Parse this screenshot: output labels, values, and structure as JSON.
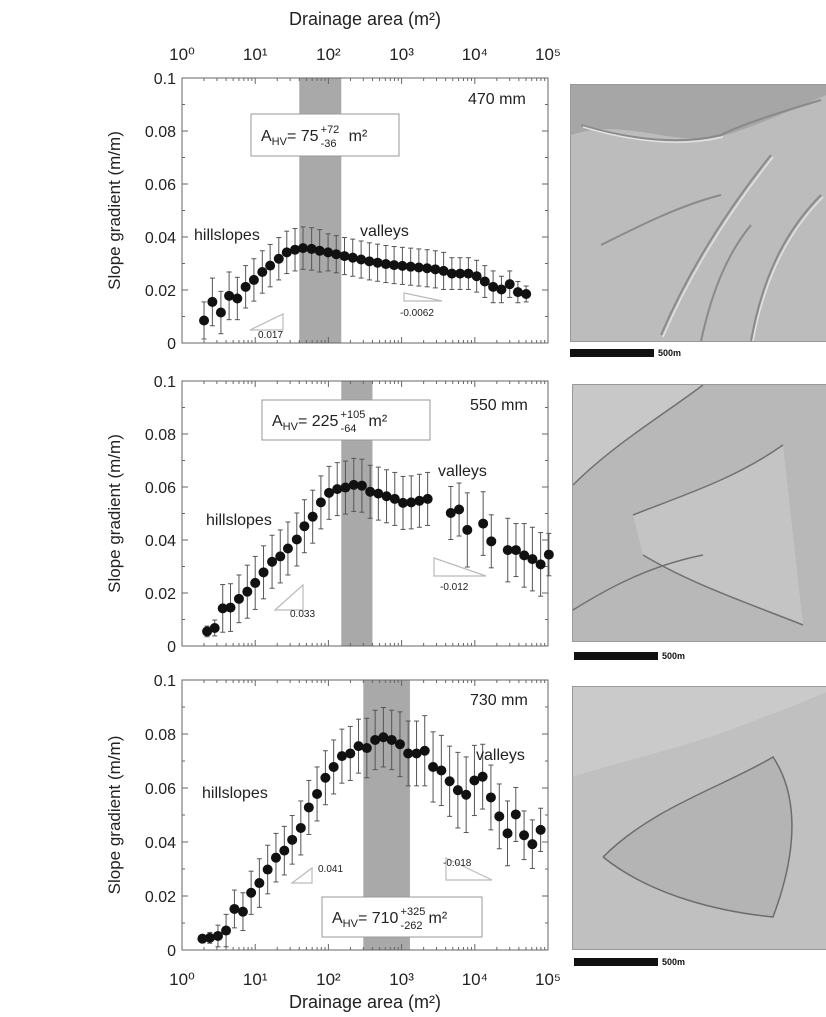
{
  "figure": {
    "top_axis_label": "Drainage area (m²)",
    "bottom_axis_label": "Drainage area (m²)",
    "y_axis_label": "Slope gradient (m/m)",
    "x_ticks": [
      {
        "value": 1,
        "label": "10⁰"
      },
      {
        "value": 10,
        "label": "10¹"
      },
      {
        "value": 100,
        "label": "10²"
      },
      {
        "value": 1000,
        "label": "10³"
      },
      {
        "value": 10000,
        "label": "10⁴"
      },
      {
        "value": 100000,
        "label": "10⁵"
      }
    ],
    "y_ticks": [
      "0",
      "0.02",
      "0.04",
      "0.06",
      "0.08",
      "0.1"
    ],
    "scale_bar_label": "500m"
  },
  "chart_data": [
    {
      "type": "scatter",
      "x_scale": "log",
      "xlim": [
        1,
        100000
      ],
      "ylim": [
        0,
        0.1
      ],
      "precip_label": "470 mm",
      "ahv": {
        "main": "A",
        "sub": "HV",
        "value": "= 75",
        "plus": "+72",
        "minus": "-36",
        "unit": "m²"
      },
      "band": [
        40,
        150
      ],
      "labels": {
        "hillslopes": "hillslopes",
        "valleys": "valleys"
      },
      "slopes": {
        "hill": "0.017",
        "valley": "-0.0062"
      },
      "x": [
        2,
        2.6,
        3.4,
        4.4,
        5.7,
        7.4,
        9.6,
        12.5,
        16,
        21,
        27,
        35,
        45,
        59,
        76,
        99,
        128,
        166,
        215,
        280,
        363,
        470,
        610,
        790,
        1025,
        1330,
        1720,
        2230,
        2890,
        3750,
        4860,
        6300,
        8170,
        10600,
        13700,
        17800,
        23100,
        30000,
        38800,
        50300
      ],
      "y": [
        0.0085,
        0.0155,
        0.0115,
        0.0178,
        0.0168,
        0.0212,
        0.0238,
        0.0268,
        0.0292,
        0.0318,
        0.0342,
        0.0352,
        0.0358,
        0.0355,
        0.0348,
        0.0342,
        0.0335,
        0.0328,
        0.0322,
        0.0315,
        0.0308,
        0.0303,
        0.0298,
        0.0294,
        0.0291,
        0.0288,
        0.0285,
        0.0282,
        0.0278,
        0.0272,
        0.0262,
        0.0262,
        0.0262,
        0.0252,
        0.0232,
        0.0212,
        0.0202,
        0.0222,
        0.0192,
        0.0185
      ],
      "err": [
        0.007,
        0.009,
        0.008,
        0.009,
        0.008,
        0.008,
        0.008,
        0.008,
        0.008,
        0.008,
        0.008,
        0.008,
        0.008,
        0.008,
        0.008,
        0.007,
        0.007,
        0.007,
        0.007,
        0.007,
        0.007,
        0.007,
        0.007,
        0.007,
        0.007,
        0.007,
        0.007,
        0.007,
        0.007,
        0.007,
        0.006,
        0.006,
        0.006,
        0.006,
        0.006,
        0.006,
        0.005,
        0.005,
        0.004,
        0.003
      ]
    },
    {
      "type": "scatter",
      "x_scale": "log",
      "xlim": [
        1,
        100000
      ],
      "ylim": [
        0,
        0.1
      ],
      "precip_label": "550 mm",
      "ahv": {
        "main": "A",
        "sub": "HV",
        "value": "= 225",
        "plus": "+105",
        "minus": "-64",
        "unit": "m²"
      },
      "band": [
        150,
        400
      ],
      "labels": {
        "hillslopes": "hillslopes",
        "valleys": "valleys"
      },
      "slopes": {
        "hill": "0.033",
        "valley": "-0.012"
      },
      "x": [
        2.2,
        2.8,
        3.6,
        4.6,
        6,
        7.8,
        10,
        13,
        17,
        22,
        28,
        37,
        47,
        61,
        79,
        102,
        132,
        171,
        222,
        287,
        372,
        481,
        623,
        807,
        1045,
        1353,
        1752,
        2270,
        4700,
        6100,
        7900,
        13000,
        16800,
        28200,
        36500,
        47300,
        61200,
        79300,
        102700
      ],
      "y": [
        0.0055,
        0.0068,
        0.0142,
        0.0145,
        0.0178,
        0.0205,
        0.0238,
        0.0278,
        0.0318,
        0.0338,
        0.0368,
        0.0402,
        0.0452,
        0.0488,
        0.0542,
        0.0578,
        0.0592,
        0.0598,
        0.0608,
        0.0605,
        0.0582,
        0.0575,
        0.0565,
        0.0555,
        0.054,
        0.0542,
        0.0548,
        0.0555,
        0.0502,
        0.0515,
        0.0438,
        0.0462,
        0.0395,
        0.0362,
        0.0362,
        0.0342,
        0.0328,
        0.0308,
        0.0345
      ],
      "err": [
        0.002,
        0.003,
        0.009,
        0.009,
        0.009,
        0.01,
        0.01,
        0.01,
        0.01,
        0.01,
        0.01,
        0.01,
        0.01,
        0.01,
        0.01,
        0.01,
        0.01,
        0.01,
        0.01,
        0.01,
        0.01,
        0.01,
        0.01,
        0.01,
        0.01,
        0.01,
        0.01,
        0.01,
        0.01,
        0.01,
        0.014,
        0.012,
        0.01,
        0.012,
        0.01,
        0.012,
        0.012,
        0.012,
        0.008
      ]
    },
    {
      "type": "scatter",
      "x_scale": "log",
      "xlim": [
        1,
        100000
      ],
      "ylim": [
        0,
        0.1
      ],
      "precip_label": "730 mm",
      "ahv": {
        "main": "A",
        "sub": "HV",
        "value": "= 710",
        "plus": "+325",
        "minus": "-262",
        "unit": "m²"
      },
      "band": [
        300,
        1300
      ],
      "labels": {
        "hillslopes": "hillslopes",
        "valleys": "valleys"
      },
      "slopes": {
        "hill": "0.041",
        "valley": "-0.018"
      },
      "x": [
        1.9,
        2.4,
        3.1,
        4,
        5.2,
        6.8,
        8.8,
        11.4,
        14.8,
        19.2,
        25,
        32,
        42,
        54,
        70,
        91,
        118,
        153,
        199,
        258,
        335,
        435,
        564,
        732,
        950,
        1230,
        1600,
        2070,
        2690,
        3490,
        4530,
        5870,
        7620,
        9880,
        12800,
        16600,
        21600,
        28000,
        36300,
        47100,
        61100,
        79300
      ],
      "y": [
        0.0042,
        0.0045,
        0.0052,
        0.0072,
        0.0152,
        0.0142,
        0.0212,
        0.0248,
        0.0298,
        0.0342,
        0.0368,
        0.0408,
        0.0452,
        0.0528,
        0.0578,
        0.0638,
        0.0678,
        0.0718,
        0.0728,
        0.0755,
        0.0748,
        0.0778,
        0.0788,
        0.0778,
        0.0762,
        0.0728,
        0.0728,
        0.0738,
        0.0678,
        0.0665,
        0.0625,
        0.0592,
        0.0575,
        0.0628,
        0.0642,
        0.0565,
        0.0495,
        0.0432,
        0.0502,
        0.0425,
        0.0392,
        0.0445
      ],
      "err": [
        0.001,
        0.002,
        0.004,
        0.006,
        0.007,
        0.007,
        0.008,
        0.009,
        0.009,
        0.009,
        0.009,
        0.009,
        0.01,
        0.01,
        0.01,
        0.01,
        0.01,
        0.01,
        0.01,
        0.01,
        0.011,
        0.011,
        0.011,
        0.011,
        0.012,
        0.012,
        0.012,
        0.013,
        0.013,
        0.013,
        0.013,
        0.014,
        0.014,
        0.013,
        0.012,
        0.012,
        0.012,
        0.012,
        0.01,
        0.009,
        0.009,
        0.008
      ]
    }
  ]
}
